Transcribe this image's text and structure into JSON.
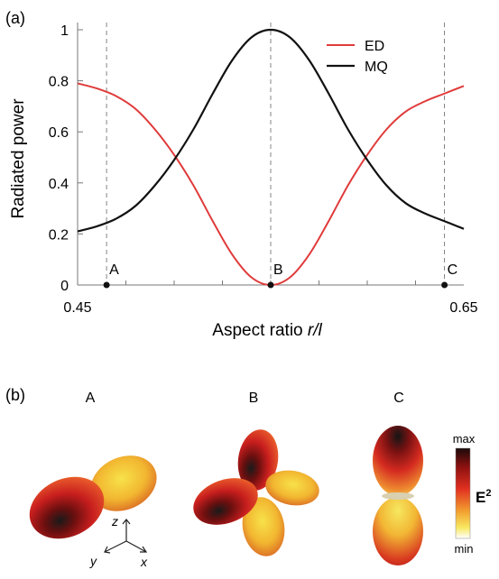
{
  "panel_a_label": "(a)",
  "panel_b_label": "(b)",
  "colors": {
    "ED": "#e03a3a",
    "MQ": "#111111"
  },
  "chart_data": {
    "type": "line",
    "xlabel_prefix": "Aspect ratio ",
    "xlabel_var": "r/l",
    "ylabel": "Radiated power",
    "xlim": [
      0.45,
      0.65
    ],
    "ylim": [
      0,
      1
    ],
    "x_tick_labels": [
      "0.45",
      "0.65"
    ],
    "y_tick_labels": [
      "0",
      "0.2",
      "0.4",
      "0.6",
      "0.8",
      "1"
    ],
    "y_ticks": [
      0,
      0.2,
      0.4,
      0.6,
      0.8,
      1
    ],
    "legend_position": "top-right",
    "marker_labels": [
      {
        "label": "A",
        "x": 0.465
      },
      {
        "label": "B",
        "x": 0.55
      },
      {
        "label": "C",
        "x": 0.64
      }
    ],
    "x": [
      0.45,
      0.46,
      0.47,
      0.48,
      0.49,
      0.5,
      0.51,
      0.52,
      0.53,
      0.54,
      0.55,
      0.56,
      0.57,
      0.58,
      0.59,
      0.6,
      0.61,
      0.62,
      0.63,
      0.64,
      0.65
    ],
    "series": [
      {
        "name": "ED",
        "values": [
          0.79,
          0.77,
          0.74,
          0.69,
          0.61,
          0.51,
          0.39,
          0.25,
          0.12,
          0.03,
          0.0,
          0.03,
          0.12,
          0.25,
          0.39,
          0.51,
          0.61,
          0.68,
          0.72,
          0.75,
          0.78
        ]
      },
      {
        "name": "MQ",
        "values": [
          0.21,
          0.23,
          0.26,
          0.31,
          0.39,
          0.49,
          0.61,
          0.75,
          0.88,
          0.97,
          1.0,
          0.97,
          0.88,
          0.75,
          0.61,
          0.49,
          0.39,
          0.32,
          0.28,
          0.25,
          0.22
        ]
      }
    ]
  },
  "panel_b": {
    "pattern_labels": [
      "A",
      "B",
      "C"
    ],
    "axes": {
      "z": "z",
      "y": "y",
      "x": "x"
    },
    "colorbar": {
      "max": "max",
      "min": "min",
      "quantity": "E",
      "power": "2"
    }
  }
}
